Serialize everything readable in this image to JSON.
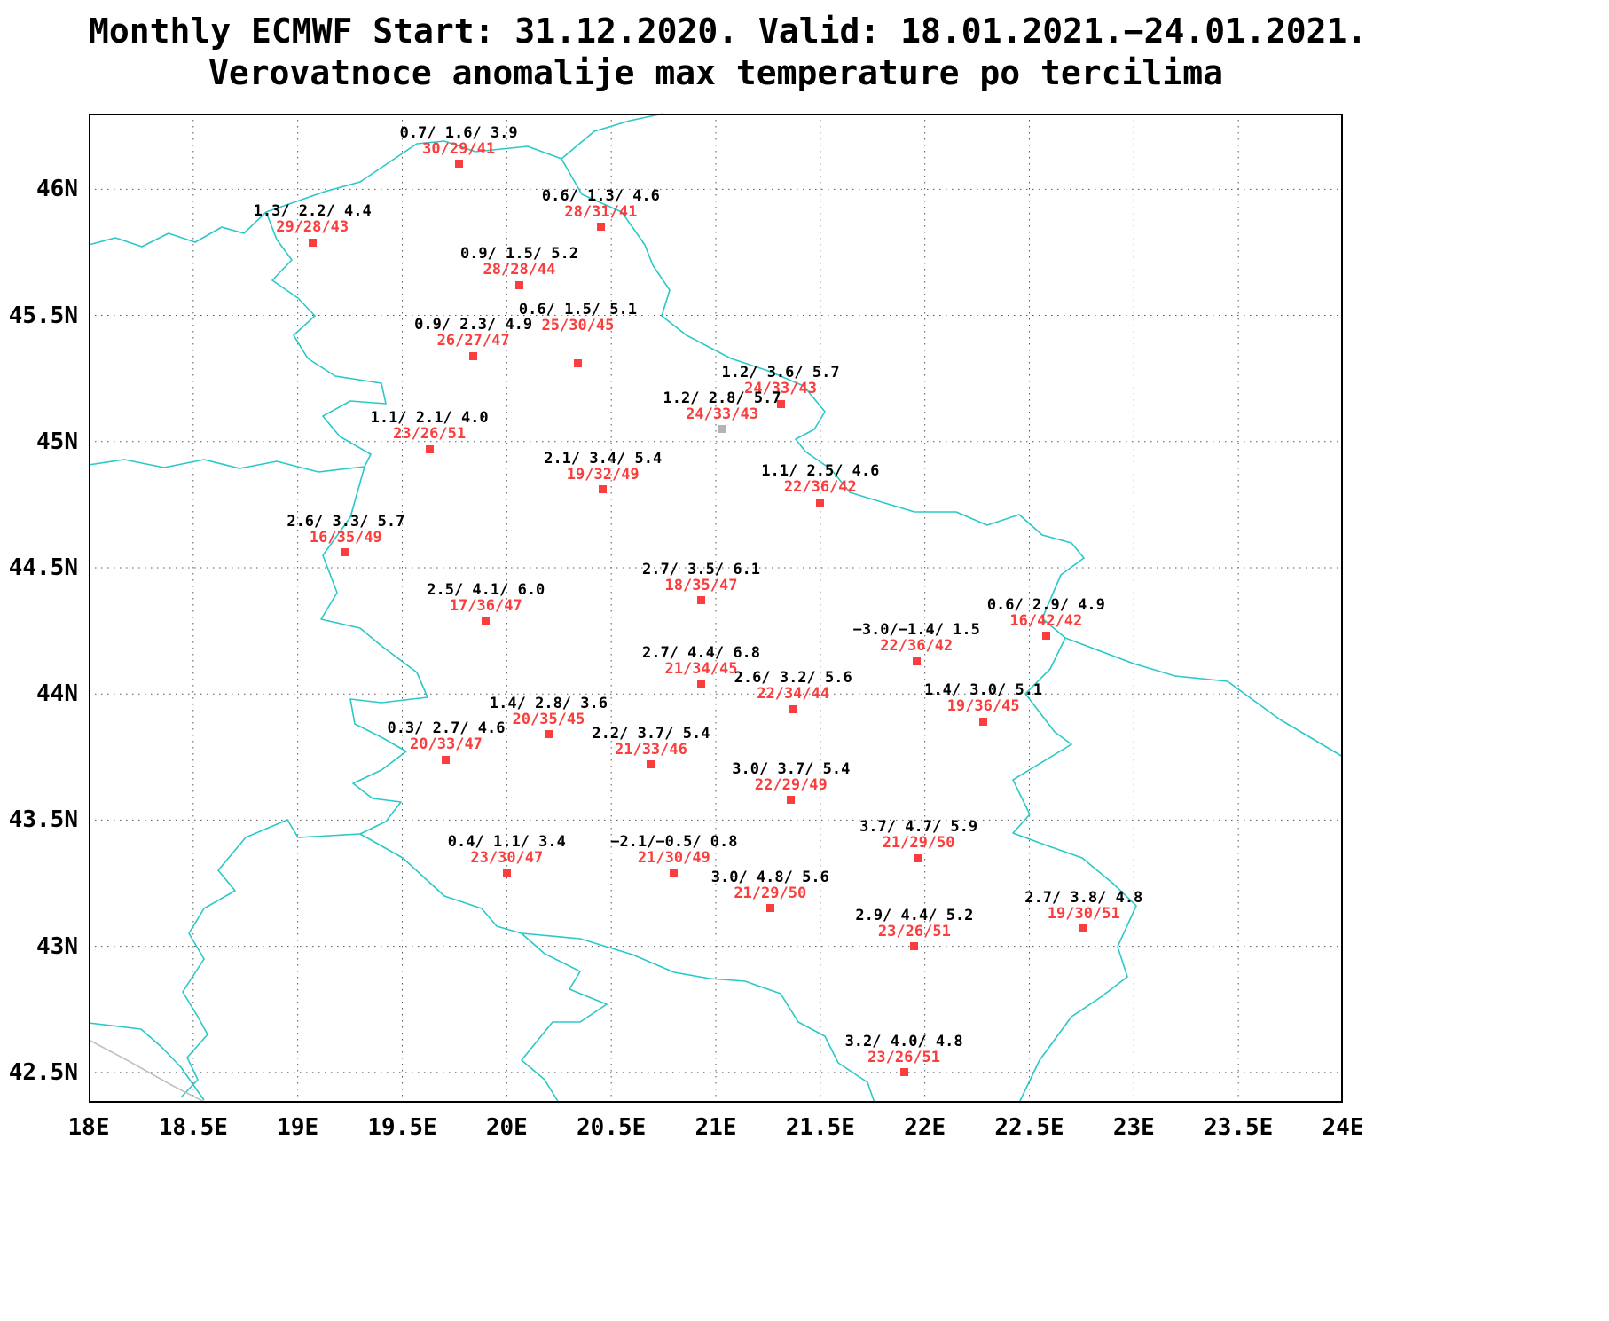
{
  "title": {
    "line1": "Monthly ECMWF Start: 31.12.2020. Valid: 18.01.2021.−24.01.2021.",
    "line2": "Verovatnoce anomalije max temperature po tercilima"
  },
  "axes": {
    "lon_min": 18,
    "lon_max": 24,
    "lat_min": 42.38,
    "lat_max": 46.3,
    "x_ticks": [
      {
        "label": "18E",
        "lon": 18
      },
      {
        "label": "18.5E",
        "lon": 18.5
      },
      {
        "label": "19E",
        "lon": 19
      },
      {
        "label": "19.5E",
        "lon": 19.5
      },
      {
        "label": "20E",
        "lon": 20
      },
      {
        "label": "20.5E",
        "lon": 20.5
      },
      {
        "label": "21E",
        "lon": 21
      },
      {
        "label": "21.5E",
        "lon": 21.5
      },
      {
        "label": "22E",
        "lon": 22
      },
      {
        "label": "22.5E",
        "lon": 22.5
      },
      {
        "label": "23E",
        "lon": 23
      },
      {
        "label": "23.5E",
        "lon": 23.5
      },
      {
        "label": "24E",
        "lon": 24
      }
    ],
    "y_ticks": [
      {
        "label": "46N",
        "lat": 46
      },
      {
        "label": "45.5N",
        "lat": 45.5
      },
      {
        "label": "45N",
        "lat": 45
      },
      {
        "label": "44.5N",
        "lat": 44.5
      },
      {
        "label": "44N",
        "lat": 44
      },
      {
        "label": "43.5N",
        "lat": 43.5
      },
      {
        "label": "43N",
        "lat": 43
      },
      {
        "label": "42.5N",
        "lat": 42.5
      }
    ]
  },
  "colors": {
    "station_marker": "#fa3d3d",
    "station_values": "#fa3d3d",
    "anomaly_text": "#000000",
    "map_outline": "#2bc8c8",
    "coastline_gray": "#c0c0c0",
    "gray_marker": "#b3b3b3"
  },
  "stations": [
    {
      "anomalies": "0.7/ 1.6/ 3.9",
      "terciles": "30/29/41",
      "lon": 19.77,
      "lat": 46.1
    },
    {
      "anomalies": "0.6/ 1.3/ 4.6",
      "terciles": "28/31/41",
      "lon": 20.45,
      "lat": 45.85
    },
    {
      "anomalies": "1.3/ 2.2/ 4.4",
      "terciles": "29/28/43",
      "lon": 19.07,
      "lat": 45.79
    },
    {
      "anomalies": "0.9/ 1.5/ 5.2",
      "terciles": "28/28/44",
      "lon": 20.06,
      "lat": 45.62
    },
    {
      "anomalies": "0.6/ 1.5/ 5.1",
      "terciles": "25/30/45",
      "lon": 20.34,
      "lat": 45.31,
      "label_dy": -26
    },
    {
      "anomalies": "0.9/ 2.3/ 4.9",
      "terciles": "26/27/47",
      "lon": 19.84,
      "lat": 45.34
    },
    {
      "anomalies": "1.2/ 3.6/ 5.7",
      "terciles": "24/33/43",
      "lon": 21.31,
      "lat": 45.15
    },
    {
      "anomalies": "1.2/ 2.8/ 5.7",
      "terciles": "24/33/43",
      "lon": 21.03,
      "lat": 45.05,
      "marker": "gray"
    },
    {
      "anomalies": "1.1/ 2.1/ 4.0",
      "terciles": "23/26/51",
      "lon": 19.63,
      "lat": 44.97
    },
    {
      "anomalies": "2.1/ 3.4/ 5.4",
      "terciles": "19/32/49",
      "lon": 20.46,
      "lat": 44.81
    },
    {
      "anomalies": "1.1/ 2.5/ 4.6",
      "terciles": "22/36/42",
      "lon": 21.5,
      "lat": 44.76
    },
    {
      "anomalies": "2.6/ 3.3/ 5.7",
      "terciles": "16/35/49",
      "lon": 19.23,
      "lat": 44.56
    },
    {
      "anomalies": "2.7/ 3.5/ 6.1",
      "terciles": "18/35/47",
      "lon": 20.93,
      "lat": 44.37
    },
    {
      "anomalies": "2.5/ 4.1/ 6.0",
      "terciles": "17/36/47",
      "lon": 19.9,
      "lat": 44.29
    },
    {
      "anomalies": "0.6/ 2.9/ 4.9",
      "terciles": "16/42/42",
      "lon": 22.58,
      "lat": 44.23
    },
    {
      "anomalies": "−3.0/−1.4/ 1.5",
      "terciles": "22/36/42",
      "lon": 21.96,
      "lat": 44.13
    },
    {
      "anomalies": "2.7/ 4.4/ 6.8",
      "terciles": "21/34/45",
      "lon": 20.93,
      "lat": 44.04
    },
    {
      "anomalies": "2.6/ 3.2/ 5.6",
      "terciles": "22/34/44",
      "lon": 21.37,
      "lat": 43.94
    },
    {
      "anomalies": "1.4/ 3.0/ 5.1",
      "terciles": "19/36/45",
      "lon": 22.28,
      "lat": 43.89
    },
    {
      "anomalies": "1.4/ 2.8/ 3.6",
      "terciles": "20/35/45",
      "lon": 20.2,
      "lat": 43.84
    },
    {
      "anomalies": "0.3/ 2.7/ 4.6",
      "terciles": "20/33/47",
      "lon": 19.71,
      "lat": 43.74
    },
    {
      "anomalies": "2.2/ 3.7/ 5.4",
      "terciles": "21/33/46",
      "lon": 20.69,
      "lat": 43.72
    },
    {
      "anomalies": "3.0/ 3.7/ 5.4",
      "terciles": "22/29/49",
      "lon": 21.36,
      "lat": 43.58
    },
    {
      "anomalies": "3.7/ 4.7/ 5.9",
      "terciles": "21/29/50",
      "lon": 21.97,
      "lat": 43.35
    },
    {
      "anomalies": "0.4/ 1.1/ 3.4",
      "terciles": "23/30/47",
      "lon": 20.0,
      "lat": 43.29
    },
    {
      "anomalies": "−2.1/−0.5/ 0.8",
      "terciles": "21/30/49",
      "lon": 20.8,
      "lat": 43.29
    },
    {
      "anomalies": "3.0/ 4.8/ 5.6",
      "terciles": "21/29/50",
      "lon": 21.26,
      "lat": 43.15
    },
    {
      "anomalies": "2.9/ 4.4/ 5.2",
      "terciles": "23/26/51",
      "lon": 21.95,
      "lat": 43.0
    },
    {
      "anomalies": "2.7/ 3.8/ 4.8",
      "terciles": "19/30/51",
      "lon": 22.76,
      "lat": 43.07
    },
    {
      "anomalies": "3.2/ 4.0/ 4.8",
      "terciles": "23/26/51",
      "lon": 21.9,
      "lat": 42.5
    }
  ]
}
